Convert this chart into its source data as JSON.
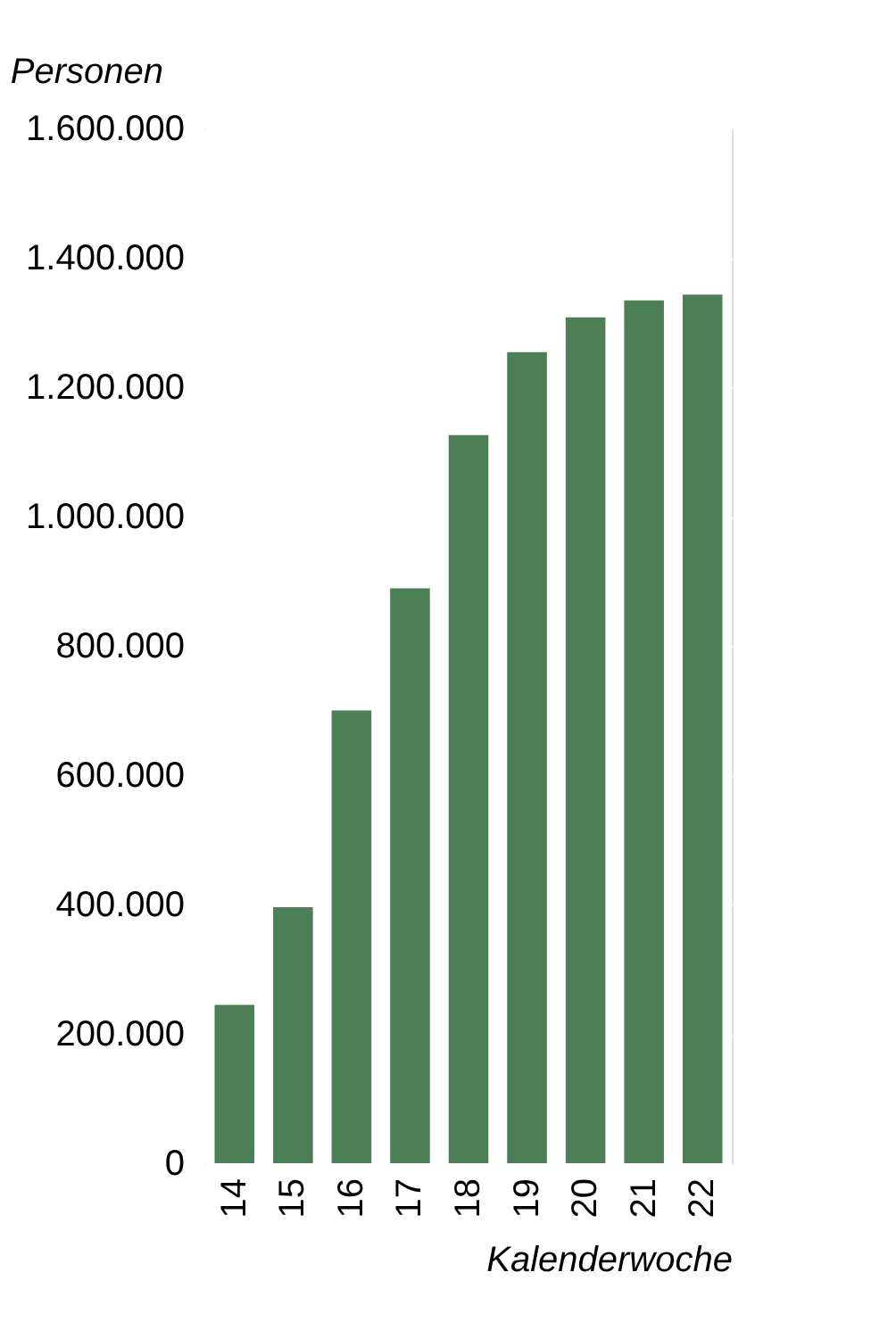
{
  "chart_data": {
    "type": "bar",
    "xlabel": "Kalenderwoche",
    "ylabel": "Personen",
    "categories": [
      "14",
      "15",
      "16",
      "17",
      "18",
      "19",
      "20",
      "21",
      "22"
    ],
    "values": [
      245000,
      396000,
      700000,
      889000,
      1126000,
      1254000,
      1308000,
      1334000,
      1343000
    ],
    "color": "#4d7f56",
    "ylim": [
      0,
      1600000
    ],
    "yticks": [
      {
        "value": 0,
        "label": "0"
      },
      {
        "value": 200000,
        "label": "200.000"
      },
      {
        "value": 400000,
        "label": "400.000"
      },
      {
        "value": 600000,
        "label": "600.000"
      },
      {
        "value": 800000,
        "label": "800.000"
      },
      {
        "value": 1000000,
        "label": "1.000.000"
      },
      {
        "value": 1200000,
        "label": "1.200.000"
      },
      {
        "value": 1400000,
        "label": "1.400.000"
      },
      {
        "value": 1600000,
        "label": "1.600.000"
      }
    ],
    "grid": true
  }
}
